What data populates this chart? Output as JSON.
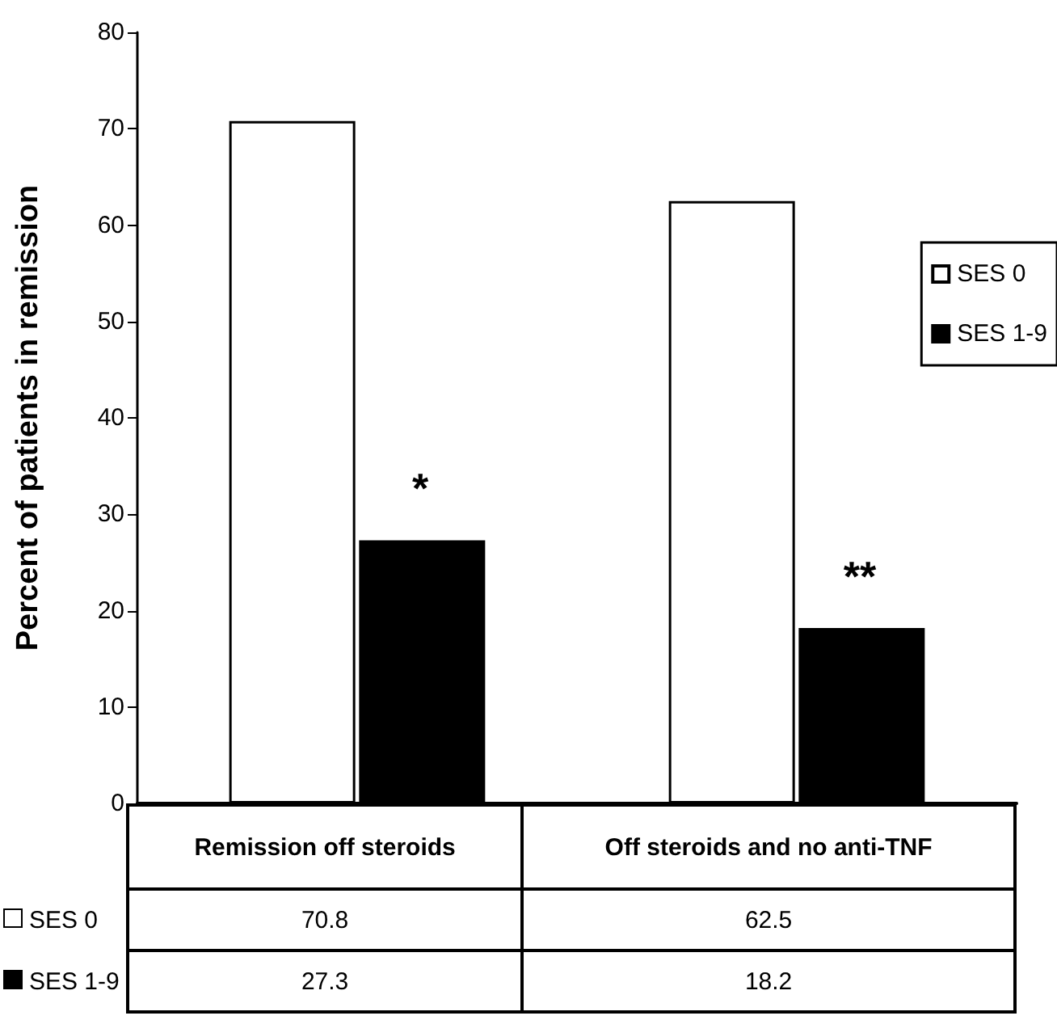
{
  "chart_data": {
    "type": "bar",
    "ylabel": "Percent of patients in remission",
    "categories": [
      "Remission off steroids",
      "Off steroids and no anti-TNF"
    ],
    "series": [
      {
        "name": "SES 0",
        "color": "#ffffff",
        "values": [
          70.8,
          62.5
        ]
      },
      {
        "name": "SES 1-9",
        "color": "#000000",
        "values": [
          27.3,
          18.2
        ]
      }
    ],
    "ylim": [
      0,
      80
    ],
    "yticks": [
      0,
      10,
      20,
      30,
      40,
      50,
      60,
      70,
      80
    ],
    "grid": false,
    "legend": "right",
    "data_labels": true,
    "annotations": [
      "*",
      "**"
    ]
  }
}
